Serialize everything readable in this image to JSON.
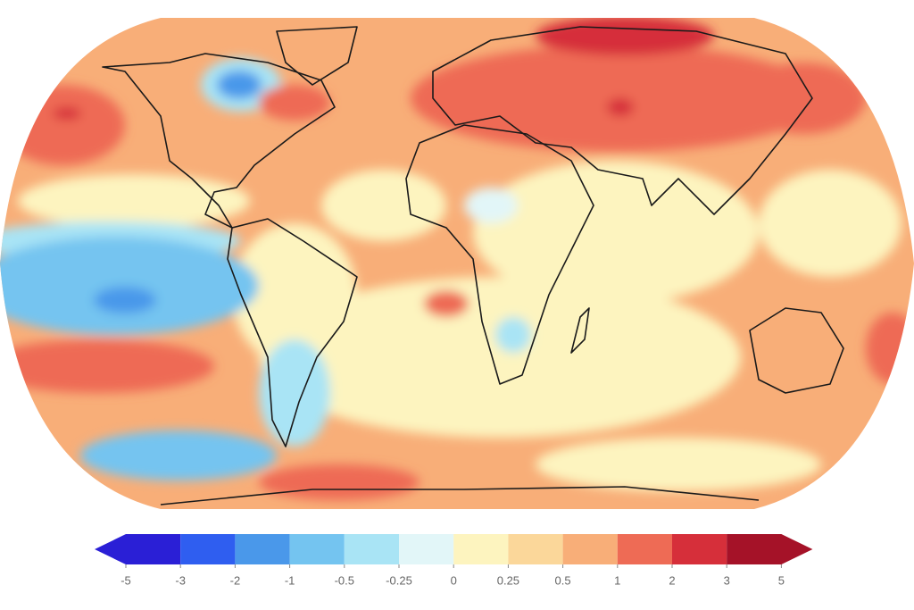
{
  "colorbar": {
    "ticks": [
      -5,
      -3,
      -2,
      -1,
      -0.5,
      -0.25,
      0,
      0.25,
      0.5,
      1,
      2,
      3,
      5
    ],
    "colors": [
      "#2a1fd6",
      "#2f5ef0",
      "#4a98ea",
      "#74c4f0",
      "#a9e4f5",
      "#e2f6f8",
      "#fdf4bf",
      "#fbd79a",
      "#f8ae78",
      "#ee6b55",
      "#d62f3a",
      "#a51228"
    ]
  }
}
